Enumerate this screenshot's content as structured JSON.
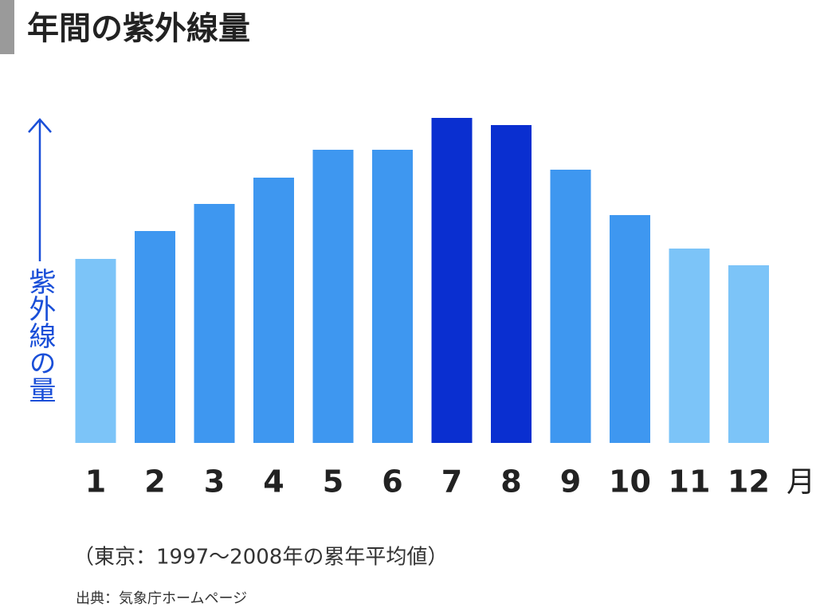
{
  "chart_data": {
    "type": "bar",
    "title": "年間の紫外線量",
    "y_label": "紫外線の量",
    "x_unit": "月",
    "categories": [
      "1",
      "2",
      "3",
      "4",
      "5",
      "6",
      "7",
      "8",
      "9",
      "10",
      "11",
      "12"
    ],
    "values": [
      231,
      266,
      300,
      333,
      368,
      368,
      408,
      399,
      343,
      286,
      244,
      223
    ],
    "colors": [
      "#7cc4f8",
      "#3e97f0",
      "#3e97f0",
      "#3e97f0",
      "#3e97f0",
      "#3e97f0",
      "#0a2fd0",
      "#0a2fd0",
      "#3e97f0",
      "#3e97f0",
      "#7cc4f8",
      "#7cc4f8"
    ],
    "ylim": [
      0,
      420
    ],
    "note": "（東京：1997〜2008年の累年平均値）",
    "source": "出典：気象庁ホームページ"
  }
}
